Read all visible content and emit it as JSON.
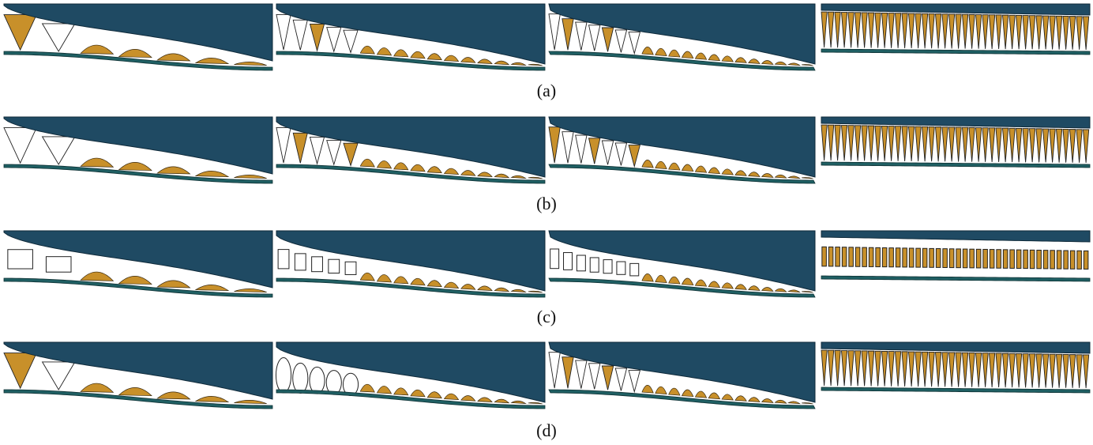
{
  "figure": {
    "rows": [
      {
        "caption": "(a)"
      },
      {
        "caption": "(b)"
      },
      {
        "caption": "(c)"
      },
      {
        "caption": "(d)"
      }
    ]
  }
}
